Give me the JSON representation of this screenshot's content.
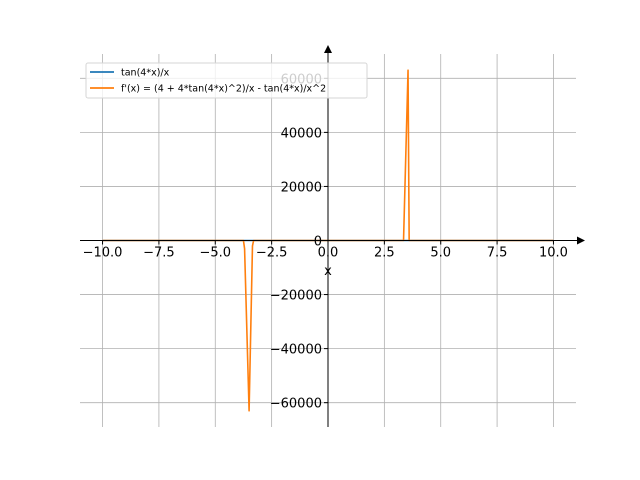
{
  "chart_data": {
    "type": "line",
    "title": "",
    "xlabel": "x",
    "ylabel": "",
    "xlim": [
      -11,
      11
    ],
    "ylim": [
      -69000,
      69000
    ],
    "x_ticks": [
      -10.0,
      -7.5,
      -5.0,
      -2.5,
      0.0,
      2.5,
      5.0,
      7.5,
      10.0
    ],
    "x_tick_labels": [
      "−10.0",
      "−7.5",
      "−5.0",
      "−2.5",
      "0.0",
      "2.5",
      "5.0",
      "7.5",
      "10.0"
    ],
    "y_ticks": [
      -60000,
      -40000,
      -20000,
      0,
      20000,
      40000,
      60000
    ],
    "y_tick_labels": [
      "−60000",
      "−40000",
      "−20000",
      "0",
      "20000",
      "40000",
      "60000"
    ],
    "grid": true,
    "legend_position": "top-left",
    "series": [
      {
        "name": "tan(4*x)/x",
        "color": "#1f77b4",
        "points": [
          [
            -10,
            0
          ],
          [
            -3.6,
            0
          ],
          [
            -3.5,
            1
          ],
          [
            -3.45,
            -1
          ],
          [
            -3.3,
            0
          ],
          [
            3.3,
            0
          ],
          [
            3.45,
            1
          ],
          [
            3.5,
            -1
          ],
          [
            10,
            0
          ]
        ]
      },
      {
        "name": "f'(x) = (4 + 4*tan(4*x)^2)/x - tan(4*x)/x^2",
        "color": "#ff7f0e",
        "points": [
          [
            -10,
            0
          ],
          [
            -3.75,
            0
          ],
          [
            -3.7,
            -3000
          ],
          [
            -3.5,
            -63000
          ],
          [
            -3.35,
            -2000
          ],
          [
            -3.3,
            0
          ],
          [
            3.35,
            0
          ],
          [
            3.55,
            63000
          ],
          [
            3.6,
            0
          ],
          [
            10,
            0
          ]
        ]
      }
    ]
  }
}
